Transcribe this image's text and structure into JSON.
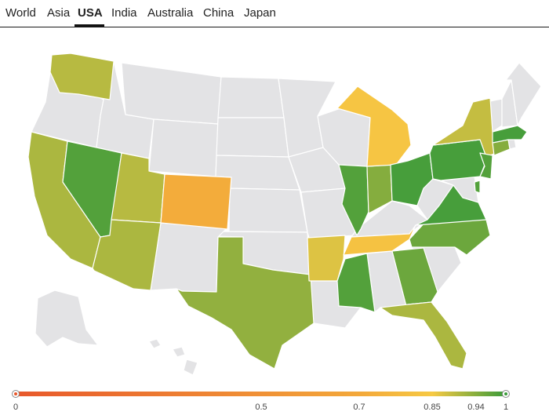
{
  "tabs": [
    {
      "label": "World",
      "active": false
    },
    {
      "label": "Asia",
      "active": false
    },
    {
      "label": "USA",
      "active": true
    },
    {
      "label": "India",
      "active": false
    },
    {
      "label": "Australia",
      "active": false
    },
    {
      "label": "China",
      "active": false
    },
    {
      "label": "Japan",
      "active": false
    }
  ],
  "colors": {
    "no_data": "#e3e3e5",
    "scale_low": "#e8582b",
    "scale_mid": "#f6c944",
    "scale_high": "#3a9b3a"
  },
  "map_data": {
    "type": "choropleth",
    "region": "USA",
    "legend": {
      "min": 0,
      "max": 1,
      "ticks": [
        "0",
        "0.5",
        "0.7",
        "0.85",
        "0.94",
        "1"
      ]
    },
    "states": [
      {
        "id": "WA",
        "value": 0.9
      },
      {
        "id": "NV",
        "value": 0.98
      },
      {
        "id": "CA",
        "value": 0.91
      },
      {
        "id": "UT",
        "value": 0.9
      },
      {
        "id": "AZ",
        "value": 0.91
      },
      {
        "id": "CO",
        "value": 0.72
      },
      {
        "id": "TX",
        "value": 0.93
      },
      {
        "id": "AR",
        "value": 0.87
      },
      {
        "id": "MS",
        "value": 0.98
      },
      {
        "id": "TN",
        "value": 0.82
      },
      {
        "id": "IL",
        "value": 0.98
      },
      {
        "id": "IN",
        "value": 0.94
      },
      {
        "id": "MI",
        "value": 0.83
      },
      {
        "id": "OH",
        "value": 0.99
      },
      {
        "id": "GA",
        "value": 0.96
      },
      {
        "id": "FL",
        "value": 0.91
      },
      {
        "id": "NC",
        "value": 0.96
      },
      {
        "id": "VA",
        "value": 0.99
      },
      {
        "id": "PA",
        "value": 0.99
      },
      {
        "id": "NY",
        "value": 0.89
      },
      {
        "id": "NJ",
        "value": 0.98
      },
      {
        "id": "CT",
        "value": 0.94
      },
      {
        "id": "MA",
        "value": 0.99
      },
      {
        "id": "DE",
        "value": 0.98
      }
    ]
  }
}
